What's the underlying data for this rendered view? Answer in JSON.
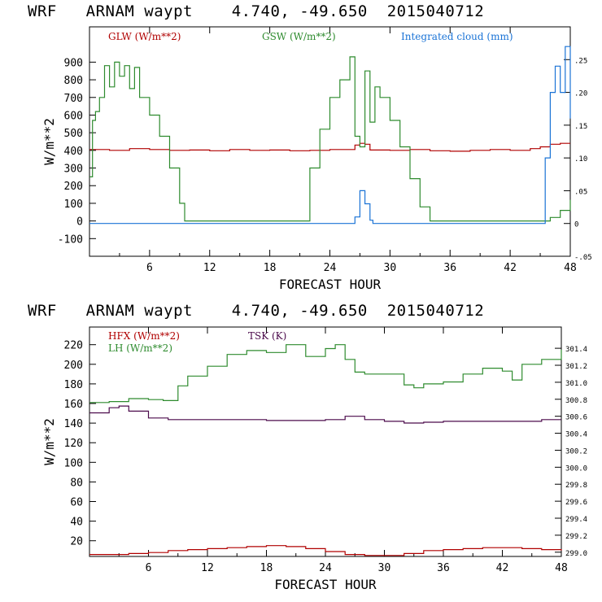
{
  "top_header": "WRF   ARNAM waypt    4.740, -49.650  2015040712",
  "bottom_header": "WRF   ARNAM waypt    4.740, -49.650  2015040712",
  "colors": {
    "red": "#b00000",
    "green": "#2e8b2e",
    "blue": "#1a73d6",
    "purple": "#4b0a4b"
  },
  "chart_data": [
    {
      "type": "line",
      "title": "WRF ARNAM waypt 4.740, -49.650 2015040712",
      "xlabel": "FORECAST HOUR",
      "ylabel": "W/m**2",
      "xlim": [
        0,
        48
      ],
      "ylim": [
        -200,
        1100
      ],
      "xticks": [
        "6",
        "12",
        "18",
        "24",
        "30",
        "36",
        "42",
        "48"
      ],
      "yticks": [
        "900",
        "800",
        "700",
        "600",
        "500",
        "400",
        "300",
        "200",
        "100",
        "0",
        "-100"
      ],
      "y2label": "Integrated cloud (mm)",
      "y2ticks": [
        ".25",
        ".20",
        ".15",
        ".10",
        ".05",
        "0",
        "-.05"
      ],
      "series": [
        {
          "name": "GLW (W/m**2)",
          "axis": "left",
          "x": [
            0,
            2,
            4,
            6,
            8,
            10,
            12,
            14,
            16,
            18,
            20,
            22,
            24,
            26,
            26.5,
            27,
            27.5,
            28,
            30,
            32,
            34,
            36,
            38,
            40,
            42,
            44,
            45,
            46,
            47,
            48
          ],
          "y": [
            405,
            400,
            410,
            405,
            400,
            402,
            398,
            405,
            400,
            402,
            398,
            400,
            405,
            405,
            430,
            440,
            435,
            402,
            400,
            405,
            398,
            395,
            400,
            405,
            400,
            410,
            420,
            435,
            440,
            440
          ]
        },
        {
          "name": "GSW (W/m**2)",
          "axis": "left",
          "x": [
            0,
            0.3,
            0.6,
            1,
            1.5,
            2,
            2.5,
            3,
            3.5,
            4,
            4.5,
            5,
            6,
            7,
            8,
            9,
            9.5,
            21,
            22,
            23,
            24,
            25,
            26,
            26.5,
            27,
            27.5,
            28,
            28.5,
            29,
            30,
            31,
            32,
            33,
            34,
            45,
            46,
            47,
            48
          ],
          "y": [
            250,
            570,
            620,
            700,
            880,
            760,
            900,
            820,
            880,
            750,
            870,
            700,
            600,
            480,
            300,
            100,
            0,
            0,
            300,
            520,
            700,
            800,
            930,
            480,
            420,
            850,
            560,
            760,
            700,
            570,
            420,
            240,
            80,
            0,
            0,
            20,
            60,
            120
          ]
        },
        {
          "name": "Integrated cloud (mm)",
          "axis": "right",
          "x": [
            0,
            26,
            26.5,
            27,
            27.5,
            28,
            28.3,
            45,
            45.5,
            46,
            46.5,
            47,
            47.5,
            48
          ],
          "y": [
            0,
            0,
            0.01,
            0.05,
            0.03,
            0.005,
            0,
            0,
            0.1,
            0.2,
            0.24,
            0.2,
            0.27,
            0.16
          ]
        }
      ]
    },
    {
      "type": "line",
      "title": "WRF ARNAM waypt 4.740, -49.650 2015040712",
      "xlabel": "FORECAST HOUR",
      "ylabel": "W/m**2",
      "xlim": [
        0,
        48
      ],
      "ylim": [
        4,
        238
      ],
      "xticks": [
        "6",
        "12",
        "18",
        "24",
        "30",
        "36",
        "42",
        "48"
      ],
      "yticks": [
        "220",
        "200",
        "180",
        "160",
        "140",
        "120",
        "100",
        "80",
        "60",
        "40",
        "20"
      ],
      "y2label": "TSK (K)",
      "y2ticks": [
        "301.4",
        "301.2",
        "301.0",
        "300.8",
        "300.6",
        "300.4",
        "300.2",
        "300.0",
        "299.8",
        "299.6",
        "299.4",
        "299.2",
        "299.0"
      ],
      "series": [
        {
          "name": "HFX (W/m**2)",
          "axis": "left",
          "x": [
            0,
            4,
            6,
            8,
            10,
            12,
            14,
            16,
            18,
            20,
            22,
            24,
            26,
            28,
            30,
            32,
            34,
            36,
            38,
            40,
            42,
            44,
            46,
            48
          ],
          "y": [
            6,
            7,
            8,
            10,
            11,
            12,
            13,
            14,
            15,
            14,
            12,
            9,
            6,
            5,
            5,
            7,
            10,
            11,
            12,
            13,
            13,
            12,
            11,
            10
          ]
        },
        {
          "name": "LH (W/m**2)",
          "axis": "left",
          "x": [
            0,
            2,
            4,
            6,
            7.5,
            9,
            10,
            12,
            14,
            16,
            18,
            20,
            22,
            24,
            25,
            26,
            27,
            28,
            30,
            32,
            33,
            34,
            36,
            38,
            40,
            42,
            43,
            44,
            46,
            48
          ],
          "y": [
            161,
            162,
            165,
            164,
            163,
            178,
            188,
            198,
            210,
            214,
            212,
            220,
            208,
            216,
            220,
            205,
            192,
            190,
            190,
            179,
            176,
            180,
            182,
            190,
            196,
            193,
            184,
            200,
            205,
            215
          ]
        },
        {
          "name": "TSK (K)",
          "axis": "right",
          "x": [
            0,
            2,
            3,
            4,
            6,
            8,
            10,
            14,
            18,
            22,
            24,
            26,
            28,
            30,
            32,
            34,
            36,
            40,
            44,
            46,
            48
          ],
          "y": [
            300.64,
            300.7,
            300.72,
            300.66,
            300.58,
            300.56,
            300.56,
            300.56,
            300.55,
            300.55,
            300.56,
            300.6,
            300.56,
            300.54,
            300.52,
            300.53,
            300.54,
            300.54,
            300.54,
            300.56,
            300.56
          ]
        }
      ]
    }
  ]
}
